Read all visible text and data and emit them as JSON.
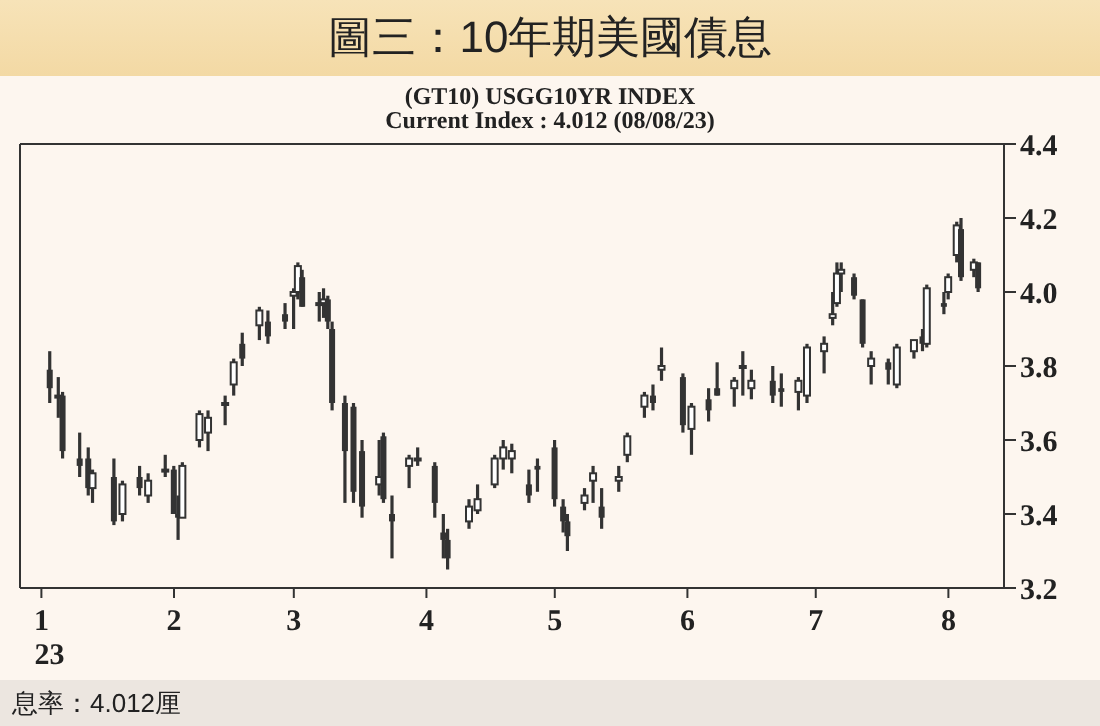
{
  "chart_data": {
    "type": "candlestick",
    "title": "圖三：10年期美國債息",
    "subtitle": "(GT10) USGG10YR INDEX",
    "annotations": [
      "Current Index : 4.012 (08/08/23)",
      "息率：4.012厘"
    ],
    "color": "#333333",
    "x": [
      "2023-01-03",
      "2023-01-05",
      "2023-01-06",
      "2023-01-10",
      "2023-01-12",
      "2023-01-13",
      "2023-01-18",
      "2023-01-20",
      "2023-01-24",
      "2023-01-26",
      "2023-01-30",
      "2023-02-01",
      "2023-02-02",
      "2023-02-03",
      "2023-02-07",
      "2023-02-09",
      "2023-02-13",
      "2023-02-15",
      "2023-02-17",
      "2023-02-21",
      "2023-02-23",
      "2023-02-27",
      "2023-03-01",
      "2023-03-02",
      "2023-03-03",
      "2023-03-07",
      "2023-03-08",
      "2023-03-09",
      "2023-03-10",
      "2023-03-13",
      "2023-03-15",
      "2023-03-17",
      "2023-03-21",
      "2023-03-22",
      "2023-03-24",
      "2023-03-28",
      "2023-03-30",
      "2023-04-03",
      "2023-04-05",
      "2023-04-06",
      "2023-04-11",
      "2023-04-13",
      "2023-04-17",
      "2023-04-19",
      "2023-04-21",
      "2023-04-25",
      "2023-04-27",
      "2023-05-01",
      "2023-05-03",
      "2023-05-04",
      "2023-05-08",
      "2023-05-10",
      "2023-05-12",
      "2023-05-16",
      "2023-05-18",
      "2023-05-22",
      "2023-05-24",
      "2023-05-26",
      "2023-05-31",
      "2023-06-02",
      "2023-06-06",
      "2023-06-08",
      "2023-06-12",
      "2023-06-14",
      "2023-06-16",
      "2023-06-21",
      "2023-06-23",
      "2023-06-27",
      "2023-06-29",
      "2023-07-03",
      "2023-07-05",
      "2023-07-06",
      "2023-07-07",
      "2023-07-10",
      "2023-07-12",
      "2023-07-14",
      "2023-07-18",
      "2023-07-20",
      "2023-07-24",
      "2023-07-26",
      "2023-07-27",
      "2023-07-31",
      "2023-08-01",
      "2023-08-03",
      "2023-08-04",
      "2023-08-07",
      "2023-08-08"
    ],
    "ohlc": [
      [
        3.79,
        3.84,
        3.7,
        3.74
      ],
      [
        3.72,
        3.77,
        3.66,
        3.72
      ],
      [
        3.72,
        3.73,
        3.55,
        3.57
      ],
      [
        3.55,
        3.62,
        3.5,
        3.53
      ],
      [
        3.55,
        3.58,
        3.45,
        3.47
      ],
      [
        3.47,
        3.52,
        3.43,
        3.51
      ],
      [
        3.5,
        3.55,
        3.37,
        3.38
      ],
      [
        3.4,
        3.49,
        3.38,
        3.48
      ],
      [
        3.5,
        3.53,
        3.45,
        3.47
      ],
      [
        3.45,
        3.51,
        3.43,
        3.49
      ],
      [
        3.52,
        3.56,
        3.5,
        3.52
      ],
      [
        3.52,
        3.53,
        3.4,
        3.4
      ],
      [
        3.4,
        3.45,
        3.33,
        3.39
      ],
      [
        3.39,
        3.54,
        3.39,
        3.53
      ],
      [
        3.6,
        3.68,
        3.58,
        3.67
      ],
      [
        3.62,
        3.68,
        3.57,
        3.66
      ],
      [
        3.7,
        3.72,
        3.64,
        3.7
      ],
      [
        3.75,
        3.82,
        3.72,
        3.81
      ],
      [
        3.86,
        3.89,
        3.8,
        3.82
      ],
      [
        3.91,
        3.96,
        3.87,
        3.95
      ],
      [
        3.92,
        3.95,
        3.86,
        3.88
      ],
      [
        3.94,
        3.97,
        3.9,
        3.92
      ],
      [
        3.99,
        4.01,
        3.9,
        4.0
      ],
      [
        4.0,
        4.08,
        3.98,
        4.07
      ],
      [
        4.04,
        4.06,
        3.96,
        3.96
      ],
      [
        3.97,
        4.0,
        3.92,
        3.97
      ],
      [
        3.97,
        4.01,
        3.93,
        3.98
      ],
      [
        3.98,
        3.99,
        3.9,
        3.92
      ],
      [
        3.9,
        3.92,
        3.68,
        3.7
      ],
      [
        3.7,
        3.72,
        3.43,
        3.57
      ],
      [
        3.69,
        3.7,
        3.43,
        3.46
      ],
      [
        3.57,
        3.6,
        3.39,
        3.42
      ],
      [
        3.48,
        3.6,
        3.45,
        3.5
      ],
      [
        3.61,
        3.62,
        3.43,
        3.44
      ],
      [
        3.4,
        3.45,
        3.28,
        3.38
      ],
      [
        3.53,
        3.56,
        3.47,
        3.55
      ],
      [
        3.55,
        3.58,
        3.53,
        3.55
      ],
      [
        3.53,
        3.54,
        3.39,
        3.43
      ],
      [
        3.35,
        3.4,
        3.28,
        3.33
      ],
      [
        3.33,
        3.36,
        3.25,
        3.28
      ],
      [
        3.38,
        3.44,
        3.36,
        3.42
      ],
      [
        3.41,
        3.48,
        3.4,
        3.44
      ],
      [
        3.48,
        3.56,
        3.47,
        3.55
      ],
      [
        3.55,
        3.6,
        3.52,
        3.58
      ],
      [
        3.55,
        3.59,
        3.51,
        3.57
      ],
      [
        3.48,
        3.52,
        3.43,
        3.45
      ],
      [
        3.53,
        3.55,
        3.46,
        3.52
      ],
      [
        3.58,
        3.6,
        3.42,
        3.44
      ],
      [
        3.42,
        3.44,
        3.35,
        3.38
      ],
      [
        3.38,
        3.4,
        3.3,
        3.34
      ],
      [
        3.43,
        3.47,
        3.41,
        3.45
      ],
      [
        3.49,
        3.53,
        3.43,
        3.51
      ],
      [
        3.42,
        3.47,
        3.36,
        3.39
      ],
      [
        3.49,
        3.53,
        3.46,
        3.5
      ],
      [
        3.56,
        3.62,
        3.54,
        3.61
      ],
      [
        3.69,
        3.73,
        3.66,
        3.72
      ],
      [
        3.72,
        3.75,
        3.68,
        3.7
      ],
      [
        3.79,
        3.85,
        3.76,
        3.8
      ],
      [
        3.77,
        3.78,
        3.62,
        3.64
      ],
      [
        3.63,
        3.7,
        3.56,
        3.69
      ],
      [
        3.71,
        3.74,
        3.65,
        3.68
      ],
      [
        3.74,
        3.81,
        3.72,
        3.72
      ],
      [
        3.74,
        3.77,
        3.69,
        3.76
      ],
      [
        3.8,
        3.84,
        3.72,
        3.8
      ],
      [
        3.74,
        3.79,
        3.71,
        3.76
      ],
      [
        3.76,
        3.8,
        3.7,
        3.72
      ],
      [
        3.74,
        3.78,
        3.69,
        3.73
      ],
      [
        3.73,
        3.77,
        3.68,
        3.76
      ],
      [
        3.72,
        3.86,
        3.7,
        3.85
      ],
      [
        3.84,
        3.88,
        3.78,
        3.86
      ],
      [
        3.93,
        4.0,
        3.91,
        3.94
      ],
      [
        3.97,
        4.08,
        3.96,
        4.05
      ],
      [
        4.05,
        4.08,
        4.0,
        4.06
      ],
      [
        4.04,
        4.05,
        3.98,
        3.99
      ],
      [
        3.98,
        3.98,
        3.85,
        3.86
      ],
      [
        3.8,
        3.84,
        3.75,
        3.82
      ],
      [
        3.81,
        3.82,
        3.75,
        3.79
      ],
      [
        3.75,
        3.86,
        3.74,
        3.85
      ],
      [
        3.84,
        3.87,
        3.82,
        3.87
      ],
      [
        3.88,
        3.9,
        3.84,
        3.86
      ],
      [
        3.86,
        4.02,
        3.85,
        4.01
      ],
      [
        3.97,
        4.0,
        3.94,
        3.96
      ],
      [
        4.0,
        4.05,
        3.98,
        4.04
      ],
      [
        4.1,
        4.19,
        4.08,
        4.18
      ],
      [
        4.17,
        4.2,
        4.03,
        4.04
      ],
      [
        4.06,
        4.09,
        4.04,
        4.08
      ],
      [
        4.08,
        4.08,
        4.0,
        4.01
      ]
    ],
    "xlim": [
      "2022-12-27",
      "2023-08-14"
    ],
    "xticks": [
      {
        "value": "2023-01-01",
        "label": "1\n23"
      },
      {
        "value": "2023-02-01",
        "label": "2"
      },
      {
        "value": "2023-03-01",
        "label": "3"
      },
      {
        "value": "2023-04-01",
        "label": "4"
      },
      {
        "value": "2023-05-01",
        "label": "5"
      },
      {
        "value": "2023-06-01",
        "label": "6"
      },
      {
        "value": "2023-07-01",
        "label": "7"
      },
      {
        "value": "2023-08-01",
        "label": "8"
      }
    ],
    "ylim": [
      3.2,
      4.4
    ],
    "yticks": [
      {
        "value": 3.2,
        "label": "3.2"
      },
      {
        "value": 3.4,
        "label": "3.4"
      },
      {
        "value": 3.6,
        "label": "3.6"
      },
      {
        "value": 3.8,
        "label": "3.8"
      },
      {
        "value": 4.0,
        "label": "4.0"
      },
      {
        "value": 4.2,
        "label": "4.2"
      },
      {
        "value": 4.4,
        "label": "4.4"
      }
    ]
  }
}
